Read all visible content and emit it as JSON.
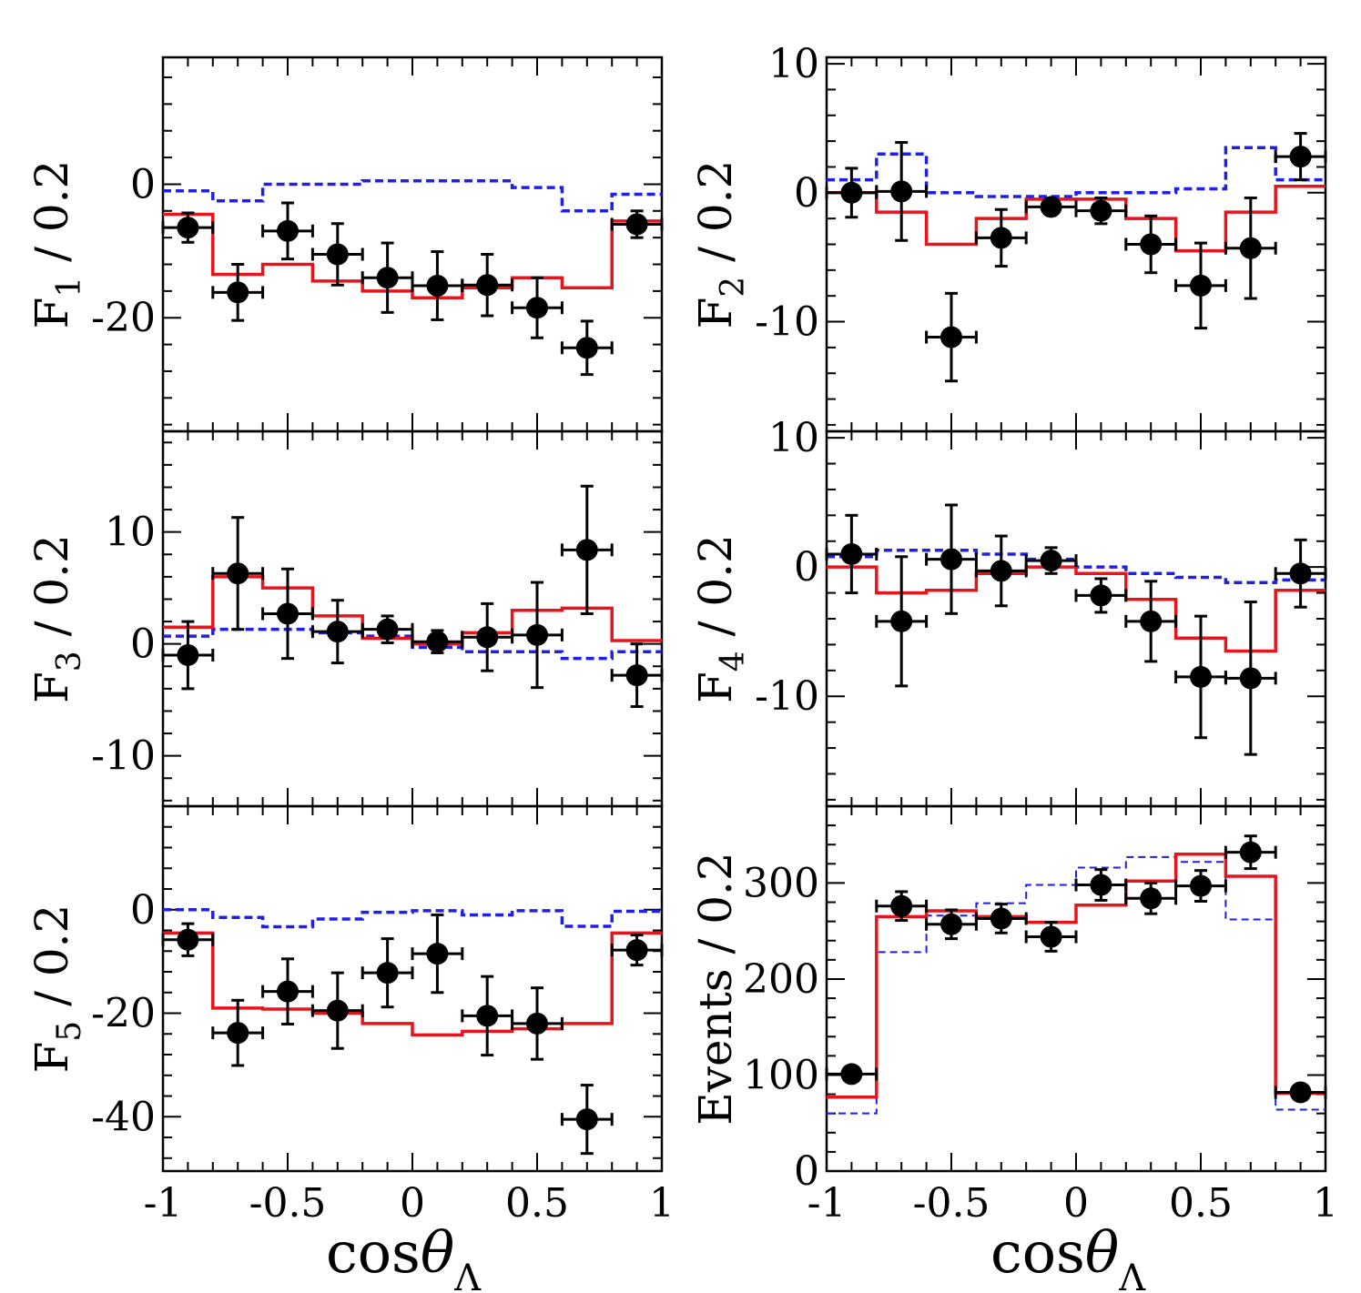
{
  "colors": {
    "data": "#000000",
    "fit_total": "#e8141b",
    "component": "#1f1fe6"
  },
  "x_tick_labels": [
    "-1",
    "-0.5",
    "0",
    "0.5",
    "1"
  ],
  "x_axis_title": {
    "base": "cos",
    "theta": "θ",
    "sub": "Λ"
  },
  "chart_data": [
    {
      "id": "F1",
      "type": "scatter-with-histograms",
      "ylabel": {
        "main": "F",
        "sub": "1",
        "rest": " / 0.2"
      },
      "xlim": [
        -1,
        1
      ],
      "ylim": [
        -37,
        19
      ],
      "yticks": [
        0,
        -20
      ],
      "ytick_labels": [
        "0",
        "-20"
      ],
      "x": [
        -0.9,
        -0.7,
        -0.5,
        -0.3,
        -0.1,
        0.1,
        0.3,
        0.5,
        0.7,
        0.9
      ],
      "data": [
        -6.5,
        -16.2,
        -7,
        -10.5,
        -14,
        -15.2,
        -15.1,
        -18.5,
        -24.5,
        -6
      ],
      "data_err": [
        2.2,
        4.2,
        4.2,
        4.6,
        5.2,
        5.1,
        4.6,
        4.5,
        4,
        2
      ],
      "fit_total": [
        -4.5,
        -13.5,
        -12,
        -14.5,
        -16,
        -17,
        -15.5,
        -14,
        -15.5,
        -5.5
      ],
      "component": [
        -1,
        -2.5,
        0,
        0,
        0.5,
        0.5,
        0.5,
        -0.5,
        -4,
        -1.5
      ]
    },
    {
      "id": "F2",
      "type": "scatter-with-histograms",
      "ylabel": {
        "main": "F",
        "sub": "2",
        "rest": " / 0.2"
      },
      "xlim": [
        -1,
        1
      ],
      "ylim": [
        -18.5,
        10.5
      ],
      "yticks": [
        10,
        0,
        -10
      ],
      "ytick_labels": [
        "10",
        "0",
        "-10"
      ],
      "x": [
        -0.9,
        -0.7,
        -0.5,
        -0.3,
        -0.1,
        0.1,
        0.3,
        0.5,
        0.7,
        0.9
      ],
      "data": [
        0,
        0.1,
        -11.2,
        -3.5,
        -1.1,
        -1.4,
        -4,
        -7.2,
        -4.3,
        2.8
      ],
      "data_err": [
        1.9,
        3.8,
        3.4,
        2.2,
        0.6,
        1,
        2.2,
        3.3,
        3.9,
        1.8
      ],
      "fit_total": [
        0,
        -1.5,
        -4,
        -2,
        -0.5,
        -0.5,
        -2,
        -4.5,
        -1.5,
        0.5
      ],
      "component": [
        1,
        3,
        0,
        -0.3,
        -0.3,
        0,
        0,
        0.3,
        3.5,
        1
      ]
    },
    {
      "id": "F3",
      "type": "scatter-with-histograms",
      "ylabel": {
        "main": "F",
        "sub": "3",
        "rest": " / 0.2"
      },
      "xlim": [
        -1,
        1
      ],
      "ylim": [
        -14.5,
        19
      ],
      "yticks": [
        10,
        0,
        -10
      ],
      "ytick_labels": [
        "10",
        "0",
        "-10"
      ],
      "x": [
        -0.9,
        -0.7,
        -0.5,
        -0.3,
        -0.1,
        0.1,
        0.3,
        0.5,
        0.7,
        0.9
      ],
      "data": [
        -1,
        6.3,
        2.7,
        1.1,
        1.3,
        0.2,
        0.6,
        0.8,
        8.4,
        -2.8
      ],
      "data_err": [
        3,
        5,
        4,
        2.8,
        1.2,
        1,
        3,
        4.7,
        5.7,
        2.8
      ],
      "fit_total": [
        1.5,
        6,
        5,
        2.5,
        0.5,
        0,
        1,
        3,
        3.2,
        0.3
      ],
      "component": [
        0.7,
        1.3,
        1.3,
        1,
        0.7,
        -0.3,
        -0.7,
        -0.7,
        -1.3,
        -0.7
      ]
    },
    {
      "id": "F4",
      "type": "scatter-with-histograms",
      "ylabel": {
        "main": "F",
        "sub": "4",
        "rest": " / 0.2"
      },
      "xlim": [
        -1,
        1
      ],
      "ylim": [
        -18.5,
        10.5
      ],
      "yticks": [
        10,
        0,
        -10
      ],
      "ytick_labels": [
        "10",
        "0",
        "-10"
      ],
      "x": [
        -0.9,
        -0.7,
        -0.5,
        -0.3,
        -0.1,
        0.1,
        0.3,
        0.5,
        0.7,
        0.9
      ],
      "data": [
        1,
        -4.2,
        0.6,
        -0.3,
        0.5,
        -2.2,
        -4.2,
        -8.5,
        -8.6,
        -0.5
      ],
      "data_err": [
        3,
        5,
        4.2,
        2.7,
        1,
        1.3,
        3.1,
        4.7,
        5.9,
        2.6
      ],
      "fit_total": [
        0,
        -2,
        -1.8,
        -0.5,
        0,
        -0.5,
        -2.5,
        -5.5,
        -6.5,
        -1.8
      ],
      "component": [
        0.8,
        1.3,
        1.3,
        1,
        0.6,
        0,
        -0.5,
        -0.8,
        -1.2,
        -1
      ]
    },
    {
      "id": "F5",
      "type": "scatter-with-histograms",
      "ylabel": {
        "main": "F",
        "sub": "5",
        "rest": " / 0.2"
      },
      "xlim": [
        -1,
        1
      ],
      "ylim": [
        -50.5,
        20
      ],
      "yticks": [
        0,
        -20,
        -40
      ],
      "ytick_labels": [
        "0",
        "-20",
        "-40"
      ],
      "x": [
        -0.9,
        -0.7,
        -0.5,
        -0.3,
        -0.1,
        0.1,
        0.3,
        0.5,
        0.7,
        0.9
      ],
      "data": [
        -5.8,
        -23.8,
        -15.8,
        -19.5,
        -12.2,
        -8.5,
        -20.5,
        -22,
        -40.5,
        -7.8
      ],
      "data_err": [
        3.1,
        6.3,
        6.3,
        7.3,
        6.6,
        7.5,
        7.6,
        6.9,
        6.6,
        2.9
      ],
      "fit_total": [
        -4.5,
        -19,
        -19.2,
        -20,
        -22,
        -24.2,
        -23.5,
        -23,
        -22,
        -4.5
      ],
      "component": [
        0,
        -1.5,
        -3.3,
        -1.8,
        -0.5,
        -0.2,
        -1,
        -0.2,
        -3.2,
        -0.3
      ]
    },
    {
      "id": "Events",
      "type": "scatter-with-histograms",
      "ylabel": {
        "main": "Events / 0.2",
        "sub": "",
        "rest": ""
      },
      "xlim": [
        -1,
        1
      ],
      "ylim": [
        0,
        380
      ],
      "yticks": [
        300,
        200,
        100,
        0
      ],
      "ytick_labels": [
        "300",
        "200",
        "100",
        "0"
      ],
      "x": [
        -0.9,
        -0.7,
        -0.5,
        -0.3,
        -0.1,
        0.1,
        0.3,
        0.5,
        0.7,
        0.9
      ],
      "data": [
        101,
        276,
        257,
        263,
        244,
        298,
        284,
        297,
        332,
        82
      ],
      "data_err": [
        0,
        15,
        15,
        15,
        15,
        16,
        16,
        16,
        17,
        0
      ],
      "fit_total": [
        77,
        265,
        271,
        265,
        259,
        277,
        302,
        330,
        307,
        81
      ],
      "component": [
        60,
        228,
        266,
        279,
        298,
        316,
        327,
        322,
        262,
        64
      ]
    }
  ]
}
